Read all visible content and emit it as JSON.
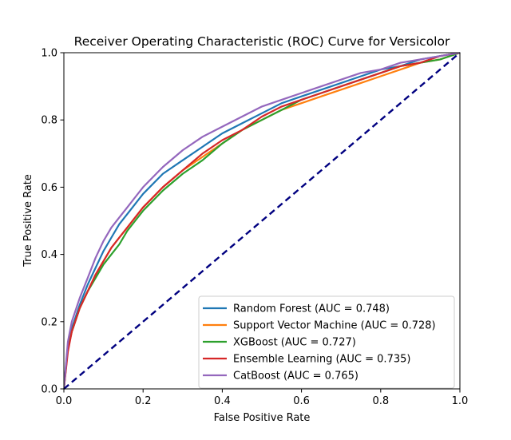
{
  "chart_data": {
    "type": "line",
    "title": "Receiver Operating Characteristic (ROC) Curve for Versicolor",
    "xlabel": "False Positive Rate",
    "ylabel": "True Positive Rate",
    "xlim": [
      0,
      1
    ],
    "ylim": [
      0,
      1
    ],
    "xticks": [
      "0.0",
      "0.2",
      "0.4",
      "0.6",
      "0.8",
      "1.0"
    ],
    "yticks": [
      "0.0",
      "0.2",
      "0.4",
      "0.6",
      "0.8",
      "1.0"
    ],
    "grid": false,
    "legend_position": "lower right",
    "series": [
      {
        "name": "Random Forest (AUC = 0.748)",
        "color": "#1f77b4",
        "x": [
          0,
          0.01,
          0.02,
          0.04,
          0.06,
          0.08,
          0.1,
          0.12,
          0.14,
          0.16,
          0.18,
          0.2,
          0.25,
          0.3,
          0.35,
          0.4,
          0.45,
          0.5,
          0.55,
          0.6,
          0.65,
          0.7,
          0.75,
          0.8,
          0.85,
          0.9,
          0.95,
          1.0
        ],
        "y": [
          0,
          0.13,
          0.18,
          0.25,
          0.31,
          0.36,
          0.41,
          0.45,
          0.49,
          0.52,
          0.55,
          0.58,
          0.64,
          0.68,
          0.72,
          0.76,
          0.79,
          0.82,
          0.85,
          0.87,
          0.89,
          0.91,
          0.93,
          0.95,
          0.96,
          0.98,
          0.99,
          1.0
        ]
      },
      {
        "name": "Support Vector Machine (AUC = 0.728)",
        "color": "#ff7f0e",
        "x": [
          0,
          0.01,
          0.02,
          0.04,
          0.06,
          0.08,
          0.1,
          0.12,
          0.14,
          0.16,
          0.18,
          0.2,
          0.25,
          0.3,
          0.35,
          0.4,
          0.45,
          0.5,
          0.55,
          0.6,
          0.65,
          0.7,
          0.75,
          0.8,
          0.85,
          0.9,
          0.95,
          1.0
        ],
        "y": [
          0,
          0.12,
          0.17,
          0.24,
          0.29,
          0.34,
          0.38,
          0.42,
          0.45,
          0.48,
          0.51,
          0.54,
          0.6,
          0.65,
          0.69,
          0.73,
          0.77,
          0.8,
          0.83,
          0.85,
          0.87,
          0.89,
          0.91,
          0.93,
          0.95,
          0.97,
          0.98,
          1.0
        ]
      },
      {
        "name": "XGBoost (AUC = 0.727)",
        "color": "#2ca02c",
        "x": [
          0,
          0.01,
          0.02,
          0.04,
          0.06,
          0.08,
          0.1,
          0.12,
          0.14,
          0.16,
          0.18,
          0.2,
          0.25,
          0.3,
          0.35,
          0.4,
          0.45,
          0.5,
          0.55,
          0.6,
          0.65,
          0.7,
          0.75,
          0.8,
          0.85,
          0.9,
          0.95,
          1.0
        ],
        "y": [
          0,
          0.12,
          0.17,
          0.24,
          0.29,
          0.33,
          0.37,
          0.4,
          0.43,
          0.47,
          0.5,
          0.53,
          0.59,
          0.64,
          0.68,
          0.73,
          0.77,
          0.8,
          0.83,
          0.86,
          0.88,
          0.9,
          0.92,
          0.94,
          0.96,
          0.97,
          0.98,
          1.0
        ]
      },
      {
        "name": "Ensemble Learning (AUC = 0.735)",
        "color": "#d62728",
        "x": [
          0,
          0.01,
          0.02,
          0.04,
          0.06,
          0.08,
          0.1,
          0.12,
          0.14,
          0.16,
          0.18,
          0.2,
          0.25,
          0.3,
          0.35,
          0.4,
          0.45,
          0.5,
          0.55,
          0.6,
          0.65,
          0.7,
          0.75,
          0.8,
          0.85,
          0.9,
          0.95,
          1.0
        ],
        "y": [
          0,
          0.11,
          0.17,
          0.24,
          0.29,
          0.34,
          0.38,
          0.42,
          0.45,
          0.48,
          0.51,
          0.54,
          0.6,
          0.65,
          0.7,
          0.74,
          0.77,
          0.81,
          0.84,
          0.86,
          0.88,
          0.9,
          0.92,
          0.94,
          0.96,
          0.97,
          0.99,
          1.0
        ]
      },
      {
        "name": "CatBoost (AUC = 0.765)",
        "color": "#9467bd",
        "x": [
          0,
          0.01,
          0.02,
          0.04,
          0.06,
          0.08,
          0.1,
          0.12,
          0.14,
          0.16,
          0.18,
          0.2,
          0.25,
          0.3,
          0.35,
          0.4,
          0.45,
          0.5,
          0.55,
          0.6,
          0.65,
          0.7,
          0.75,
          0.8,
          0.85,
          0.9,
          0.95,
          1.0
        ],
        "y": [
          0,
          0.14,
          0.2,
          0.27,
          0.33,
          0.39,
          0.44,
          0.48,
          0.51,
          0.54,
          0.57,
          0.6,
          0.66,
          0.71,
          0.75,
          0.78,
          0.81,
          0.84,
          0.86,
          0.88,
          0.9,
          0.92,
          0.94,
          0.95,
          0.97,
          0.98,
          0.99,
          1.0
        ]
      }
    ],
    "reference_line": {
      "x": [
        0,
        1
      ],
      "y": [
        0,
        1
      ],
      "color": "#000080",
      "style": "dashed"
    }
  }
}
